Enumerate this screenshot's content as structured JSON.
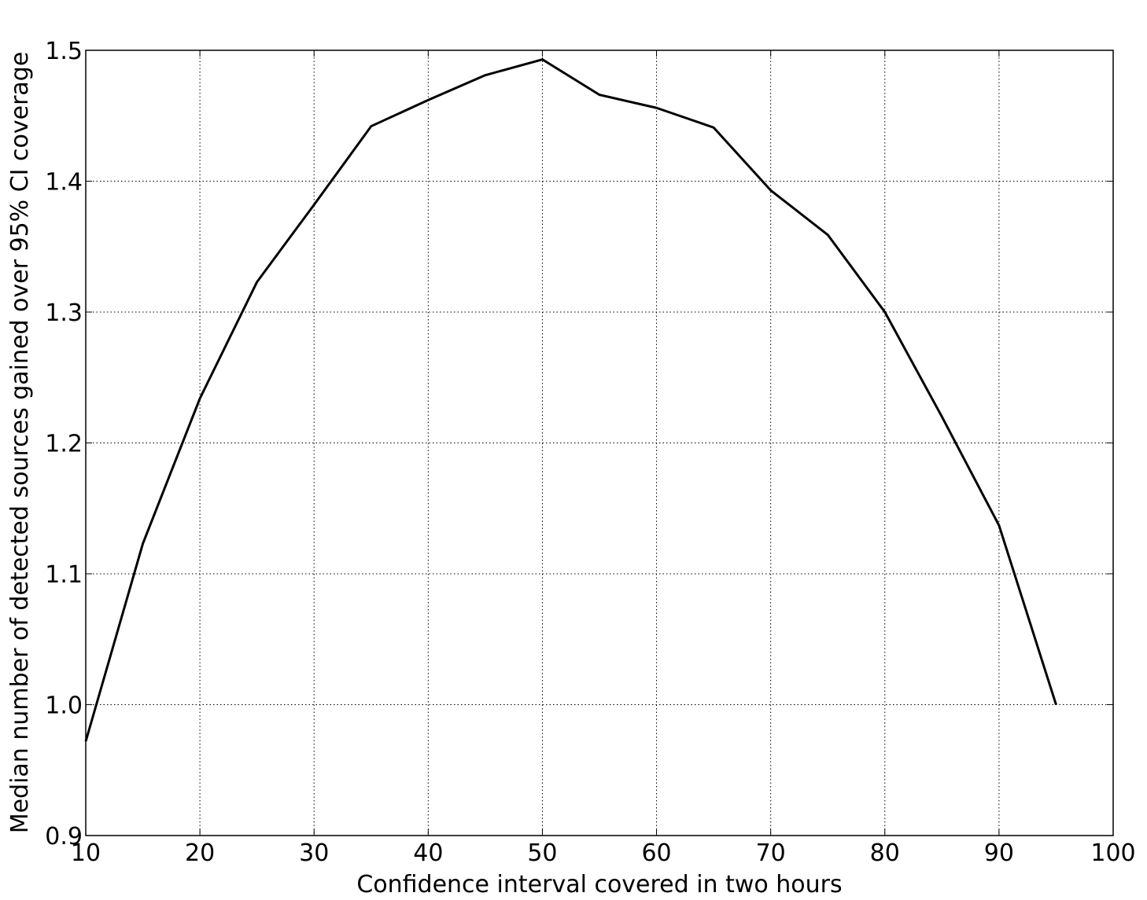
{
  "chart_data": {
    "type": "line",
    "x_label": "Confidence interval covered in two hours",
    "y_label": "Median number of detected sources gained over 95% CI coverage",
    "x": [
      10,
      15,
      20,
      25,
      30,
      35,
      40,
      45,
      50,
      55,
      60,
      65,
      70,
      75,
      80,
      85,
      90,
      95
    ],
    "series": [
      {
        "color": "#000000",
        "values": [
          0.972,
          1.123,
          1.234,
          1.323,
          1.382,
          1.442,
          1.462,
          1.481,
          1.493,
          1.466,
          1.456,
          1.441,
          1.393,
          1.359,
          1.3,
          1.22,
          1.137,
          1.0
        ]
      }
    ],
    "xlim": [
      10,
      100
    ],
    "xticks": [
      10,
      20,
      30,
      40,
      50,
      60,
      70,
      80,
      90,
      100
    ],
    "ylim": [
      0.9,
      1.5
    ],
    "yticks": [
      0.9,
      {
        "value": 1.0,
        "label": "1.0"
      },
      1.1,
      1.2,
      1.3,
      1.4,
      1.5
    ],
    "grid": true
  }
}
